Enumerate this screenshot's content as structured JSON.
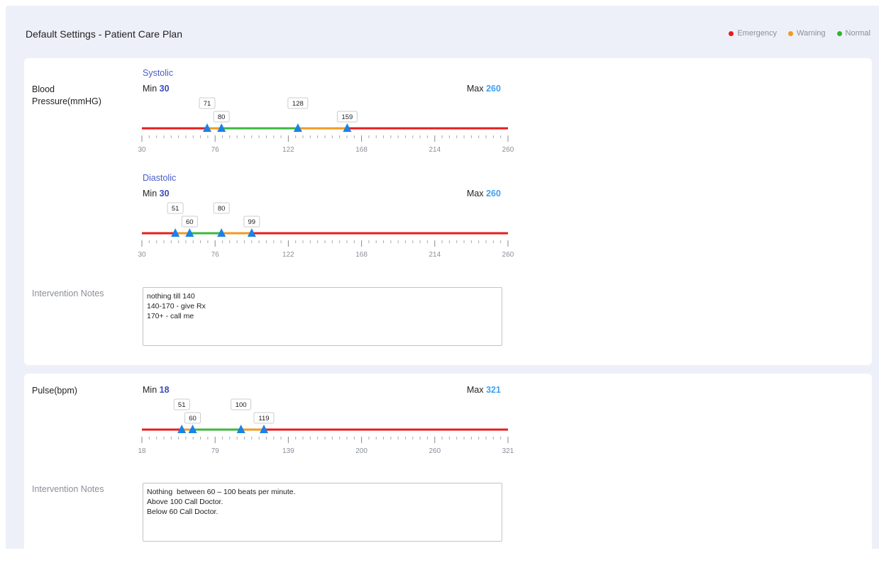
{
  "page": {
    "title": "Default Settings - Patient Care Plan",
    "legend": [
      {
        "label": "Emergency",
        "color": "#e81c1c"
      },
      {
        "label": "Warning",
        "color": "#f29a1e"
      },
      {
        "label": "Normal",
        "color": "#2db52d"
      }
    ]
  },
  "colors": {
    "emergency": "#e81c1c",
    "warning": "#f29a1e",
    "normal": "#3cb83c",
    "handle": "#1a82e8"
  },
  "blood_pressure": {
    "label_line1": "Blood",
    "label_line2": "Pressure(mmHG)",
    "systolic": {
      "title": "Systolic",
      "min_label": "Min",
      "min": 30,
      "max_label": "Max",
      "max": 260,
      "ticks": [
        30,
        76,
        122,
        168,
        214,
        260
      ],
      "handles": [
        71,
        80,
        128,
        159
      ]
    },
    "diastolic": {
      "title": "Diastolic",
      "min_label": "Min",
      "min": 30,
      "max_label": "Max",
      "max": 260,
      "ticks": [
        30,
        76,
        122,
        168,
        214,
        260
      ],
      "handles": [
        51,
        60,
        80,
        99
      ]
    },
    "notes_label": "Intervention Notes",
    "notes": [
      "nothing till 140",
      "140-170 - give Rx",
      "170+ - call me"
    ]
  },
  "pulse": {
    "label": "Pulse(bpm)",
    "slider": {
      "min_label": "Min",
      "min": 18,
      "max_label": "Max",
      "max": 321,
      "ticks": [
        18,
        79,
        139,
        200,
        260,
        321
      ],
      "handles": [
        51,
        60,
        100,
        119
      ]
    },
    "notes_label": "Intervention Notes",
    "notes": [
      "Nothing  between 60 – 100 beats per minute.",
      "Above 100 Call Doctor.",
      "Below 60 Call Doctor."
    ]
  }
}
